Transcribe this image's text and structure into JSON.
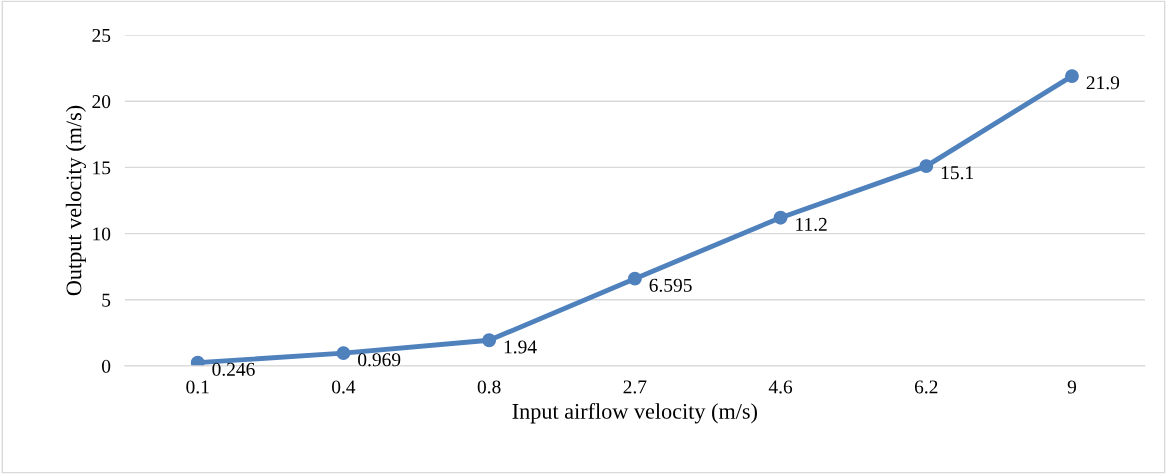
{
  "chart_data": {
    "type": "line",
    "xlabel": "Input airflow velocity (m/s)",
    "ylabel": "Output velocity (m/s)",
    "categories": [
      "0.1",
      "0.4",
      "0.8",
      "2.7",
      "4.6",
      "6.2",
      "9"
    ],
    "series": [
      {
        "color": "#4f81bd",
        "values": [
          0.246,
          0.969,
          1.94,
          6.595,
          11.2,
          15.1,
          21.9
        ]
      }
    ],
    "ylim": [
      0,
      25
    ],
    "yticks": [
      0,
      5,
      10,
      15,
      20,
      25
    ],
    "grid": "y",
    "marker": "circle",
    "line_style": "solid",
    "data_labels": true,
    "legend": false
  }
}
